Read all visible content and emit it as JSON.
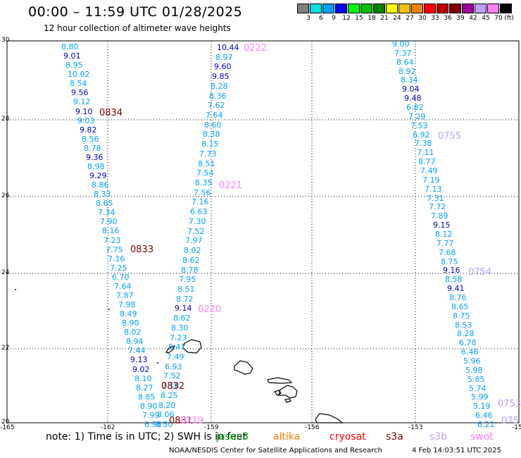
{
  "header": {
    "title": "00:00 – 11:59 UTC 01/28/2025",
    "subtitle": "12 hour collection of altimeter wave heights"
  },
  "legend": {
    "unit": "(ft)",
    "bins": [
      {
        "label": "3",
        "color": "#808080"
      },
      {
        "label": "6",
        "color": "#00e0e0"
      },
      {
        "label": "9",
        "color": "#00a0ff"
      },
      {
        "label": "12",
        "color": "#0000ff"
      },
      {
        "label": "15",
        "color": "#00ff00"
      },
      {
        "label": "18",
        "color": "#00c000"
      },
      {
        "label": "21",
        "color": "#008000"
      },
      {
        "label": "24",
        "color": "#ffff00"
      },
      {
        "label": "27",
        "color": "#ffc000"
      },
      {
        "label": "30",
        "color": "#ff8000"
      },
      {
        "label": "33",
        "color": "#ff0000"
      },
      {
        "label": "36",
        "color": "#c00000"
      },
      {
        "label": "39",
        "color": "#800000"
      },
      {
        "label": "42",
        "color": "#a000a0"
      },
      {
        "label": "45",
        "color": "#c0a0ff"
      },
      {
        "label": "70",
        "color": "#ff80ff"
      },
      {
        "label": "",
        "color": "#000000"
      }
    ]
  },
  "axes": {
    "lat_ticks": [
      "30",
      "28",
      "26",
      "24",
      "22",
      "20"
    ],
    "lon_ticks": [
      "-165",
      "-162",
      "-159",
      "-156",
      "-153",
      "-15"
    ]
  },
  "colors": {
    "ssh_9_12": "#00a0ff",
    "ssh_12": "#0000c0",
    "pass_jason": "#800000",
    "pass_s3b": "#ff80ff",
    "pass_swot": "#c0a0ff"
  },
  "tracks": [
    {
      "name": "track-a",
      "values": [
        {
          "v": "8.80",
          "c": "a"
        },
        {
          "v": "9.01",
          "c": "b"
        },
        {
          "v": "8.95",
          "c": "a"
        },
        {
          "v": "10.02",
          "c": "a"
        },
        {
          "v": "8.54",
          "c": "a"
        },
        {
          "v": "9.56",
          "c": "b"
        },
        {
          "v": "9.12",
          "c": "a"
        },
        {
          "v": "9.10",
          "c": "b"
        },
        {
          "v": "9.03",
          "c": "a"
        },
        {
          "v": "9.82",
          "c": "b"
        },
        {
          "v": "8.56",
          "c": "a"
        },
        {
          "v": "8.78",
          "c": "a"
        },
        {
          "v": "9.36",
          "c": "b"
        },
        {
          "v": "8.98",
          "c": "a"
        },
        {
          "v": "9.29",
          "c": "b"
        },
        {
          "v": "8.86",
          "c": "a"
        },
        {
          "v": "8.33",
          "c": "a"
        },
        {
          "v": "8.65",
          "c": "a"
        },
        {
          "v": "7.34",
          "c": "a"
        },
        {
          "v": "7.90",
          "c": "a"
        },
        {
          "v": "8.16",
          "c": "a"
        },
        {
          "v": "7.23",
          "c": "a"
        },
        {
          "v": "7.75",
          "c": "a"
        },
        {
          "v": "7.16",
          "c": "a"
        },
        {
          "v": "7.25",
          "c": "a"
        },
        {
          "v": "6.70",
          "c": "a"
        },
        {
          "v": "7.64",
          "c": "a"
        },
        {
          "v": "7.87",
          "c": "a"
        },
        {
          "v": "7.98",
          "c": "a"
        },
        {
          "v": "8.49",
          "c": "a"
        },
        {
          "v": "8.90",
          "c": "a"
        },
        {
          "v": "8.02",
          "c": "a"
        },
        {
          "v": "8.94",
          "c": "a"
        },
        {
          "v": "7.44",
          "c": "a"
        },
        {
          "v": "9.13",
          "c": "b"
        },
        {
          "v": "9.02",
          "c": "b"
        },
        {
          "v": "8.10",
          "c": "a"
        },
        {
          "v": "8.27",
          "c": "a"
        },
        {
          "v": "8.85",
          "c": "a"
        },
        {
          "v": "8.90",
          "c": "a"
        },
        {
          "v": "7.99",
          "c": "a"
        },
        {
          "v": "6.96",
          "c": "a"
        }
      ]
    },
    {
      "name": "track-b",
      "values": [
        {
          "v": "10.44",
          "c": "b"
        },
        {
          "v": "8.97",
          "c": "a"
        },
        {
          "v": "9.60",
          "c": "b"
        },
        {
          "v": "9.85",
          "c": "b"
        },
        {
          "v": "8.28",
          "c": "a"
        },
        {
          "v": "8.36",
          "c": "a"
        },
        {
          "v": "7.62",
          "c": "a"
        },
        {
          "v": "7.64",
          "c": "a"
        },
        {
          "v": "8.60",
          "c": "a"
        },
        {
          "v": "8.38",
          "c": "a"
        },
        {
          "v": "8.15",
          "c": "a"
        },
        {
          "v": "7.73",
          "c": "a"
        },
        {
          "v": "8.51",
          "c": "a"
        },
        {
          "v": "7.54",
          "c": "a"
        },
        {
          "v": "8.35",
          "c": "a"
        },
        {
          "v": "7.56",
          "c": "a"
        },
        {
          "v": "7.16",
          "c": "a"
        },
        {
          "v": "6.63",
          "c": "a"
        },
        {
          "v": "7.30",
          "c": "a"
        },
        {
          "v": "7.52",
          "c": "a"
        },
        {
          "v": "7.97",
          "c": "a"
        },
        {
          "v": "8.02",
          "c": "a"
        },
        {
          "v": "8.62",
          "c": "a"
        },
        {
          "v": "8.78",
          "c": "a"
        },
        {
          "v": "7.95",
          "c": "a"
        },
        {
          "v": "8.51",
          "c": "a"
        },
        {
          "v": "8.72",
          "c": "a"
        },
        {
          "v": "9.14",
          "c": "b"
        },
        {
          "v": "8.62",
          "c": "a"
        },
        {
          "v": "8.30",
          "c": "a"
        },
        {
          "v": "7.23",
          "c": "a"
        },
        {
          "v": "8.41",
          "c": "a"
        },
        {
          "v": "7.49",
          "c": "a"
        },
        {
          "v": "6.93",
          "c": "a"
        },
        {
          "v": "7.52",
          "c": "a"
        },
        {
          "v": "7.18",
          "c": "a"
        },
        {
          "v": "8.25",
          "c": "a"
        },
        {
          "v": "8.20",
          "c": "a"
        },
        {
          "v": "8.06",
          "c": "a"
        },
        {
          "v": "8.50",
          "c": "a"
        }
      ]
    },
    {
      "name": "track-c",
      "values": [
        {
          "v": "9.00",
          "c": "a"
        },
        {
          "v": "7.37",
          "c": "a"
        },
        {
          "v": "8.64",
          "c": "a"
        },
        {
          "v": "8.92",
          "c": "a"
        },
        {
          "v": "8.34",
          "c": "a"
        },
        {
          "v": "9.04",
          "c": "b"
        },
        {
          "v": "9.48",
          "c": "b"
        },
        {
          "v": "6.82",
          "c": "a"
        },
        {
          "v": "7.29",
          "c": "a"
        },
        {
          "v": "7.53",
          "c": "a"
        },
        {
          "v": "6.92",
          "c": "a"
        },
        {
          "v": "7.38",
          "c": "a"
        },
        {
          "v": "7.11",
          "c": "a"
        },
        {
          "v": "8.77",
          "c": "a"
        },
        {
          "v": "7.49",
          "c": "a"
        },
        {
          "v": "7.19",
          "c": "a"
        },
        {
          "v": "7.13",
          "c": "a"
        },
        {
          "v": "7.31",
          "c": "a"
        },
        {
          "v": "7.72",
          "c": "a"
        },
        {
          "v": "7.89",
          "c": "a"
        },
        {
          "v": "9.15",
          "c": "b"
        },
        {
          "v": "8.12",
          "c": "a"
        },
        {
          "v": "7.77",
          "c": "a"
        },
        {
          "v": "7.68",
          "c": "a"
        },
        {
          "v": "8.75",
          "c": "a"
        },
        {
          "v": "9.16",
          "c": "b"
        },
        {
          "v": "8.58",
          "c": "a"
        },
        {
          "v": "9.41",
          "c": "b"
        },
        {
          "v": "8.76",
          "c": "a"
        },
        {
          "v": "8.65",
          "c": "a"
        },
        {
          "v": "8.75",
          "c": "a"
        },
        {
          "v": "8.53",
          "c": "a"
        },
        {
          "v": "8.28",
          "c": "a"
        },
        {
          "v": "6.78",
          "c": "a"
        },
        {
          "v": "6.46",
          "c": "a"
        },
        {
          "v": "5.96",
          "c": "a"
        },
        {
          "v": "5.98",
          "c": "a"
        },
        {
          "v": "5.85",
          "c": "a"
        },
        {
          "v": "5.74",
          "c": "a"
        },
        {
          "v": "5.99",
          "c": "a"
        },
        {
          "v": "5.19",
          "c": "a"
        },
        {
          "v": "6.46",
          "c": "a"
        },
        {
          "v": "6.21",
          "c": "a"
        }
      ]
    }
  ],
  "pass_labels": [
    {
      "text": "0222",
      "sat": "s3b"
    },
    {
      "text": "0834",
      "sat": "jason"
    },
    {
      "text": "0755",
      "sat": "swot"
    },
    {
      "text": "0221",
      "sat": "s3b"
    },
    {
      "text": "0833",
      "sat": "jason"
    },
    {
      "text": "0754",
      "sat": "swot"
    },
    {
      "text": "0220",
      "sat": "s3b"
    },
    {
      "text": "0832",
      "sat": "jason"
    },
    {
      "text": "0831",
      "sat": "jason"
    },
    {
      "text": "0219",
      "sat": "s3b"
    },
    {
      "text": "0753",
      "sat": "swot"
    },
    {
      "text": "075",
      "sat": "swot"
    }
  ],
  "footer": {
    "note": "note: 1) Time is in UTC; 2) SWH is in feet",
    "credit": "NOAA/NESDIS Center for Satellite Applications and Research",
    "timestamp": "4 Feb 14:03:51 UTC 2025",
    "satellites": [
      {
        "label": "jason3",
        "color": "#00a000"
      },
      {
        "label": "altika",
        "color": "#ff8000"
      },
      {
        "label": "cryosat",
        "color": "#ff0000"
      },
      {
        "label": "s3a",
        "color": "#800000"
      },
      {
        "label": "s3b",
        "color": "#c0a0ff"
      },
      {
        "label": "swot",
        "color": "#ff80ff"
      }
    ]
  }
}
